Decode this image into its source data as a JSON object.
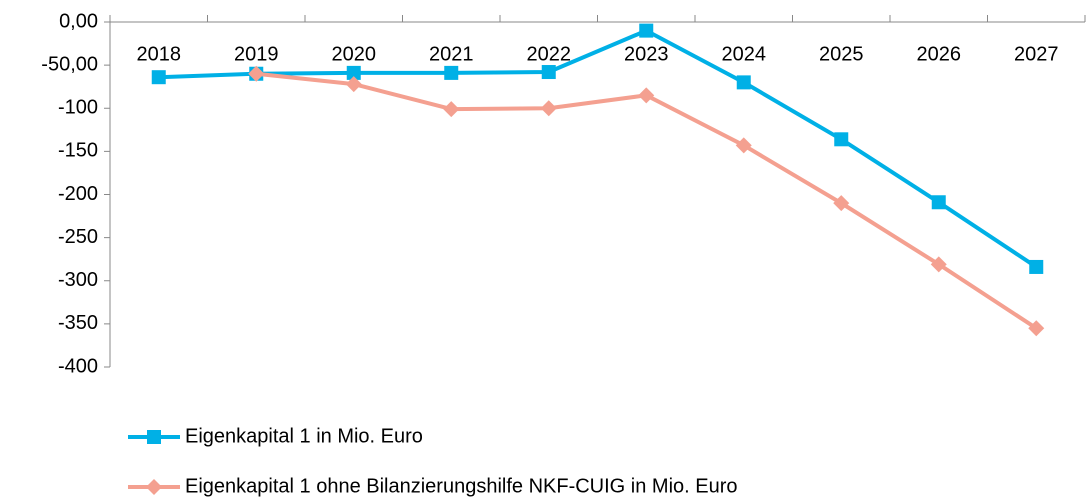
{
  "chart_data": {
    "type": "line",
    "categories": [
      "2018",
      "2019",
      "2020",
      "2021",
      "2022",
      "2023",
      "2024",
      "2025",
      "2026",
      "2027"
    ],
    "series": [
      {
        "name": "Eigenkapital 1 in Mio. Euro",
        "color": "#00b0e6",
        "marker": "square",
        "values": [
          -64,
          -60,
          -59,
          -59,
          -58,
          -10,
          -70,
          -136,
          -209,
          -284
        ]
      },
      {
        "name": "Eigenkapital 1 ohne Bilanzierungshilfe NKF-CUIG in Mio. Euro",
        "color": "#f4a090",
        "marker": "diamond",
        "values": [
          null,
          -60,
          -72,
          -101,
          -100,
          -85,
          -143,
          -210,
          -281,
          -355
        ]
      }
    ],
    "ylim": [
      -400,
      0
    ],
    "yticks": [
      {
        "value": 0,
        "label": "0,00"
      },
      {
        "value": -50,
        "label": "-50,00"
      },
      -100,
      -150,
      -200,
      -250,
      -300,
      -350,
      -400
    ],
    "grid": false,
    "legend": "bottom"
  }
}
